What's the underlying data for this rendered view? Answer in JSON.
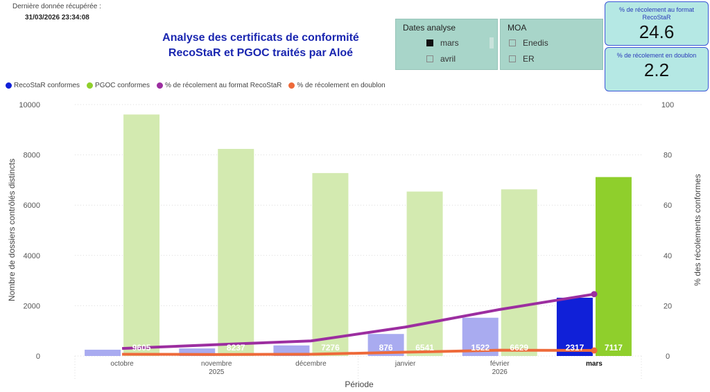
{
  "header": {
    "last_label": "Dernière donnée récupérée :",
    "last_value": "31/03/2026 23:34:08",
    "title_line1": "Analyse des certificats de conformité",
    "title_line2": "RecoStaR et PGOC traités par Aloé"
  },
  "slicers": {
    "dates": {
      "title": "Dates analyse",
      "items": [
        {
          "label": "mars",
          "checked": true
        },
        {
          "label": "avril",
          "checked": false
        }
      ]
    },
    "moa": {
      "title": "MOA",
      "items": [
        {
          "label": "Enedis",
          "checked": false
        },
        {
          "label": "ER",
          "checked": false
        }
      ]
    }
  },
  "kpis": [
    {
      "label": "% de récolement au format RecoStaR",
      "value": "24.6"
    },
    {
      "label": "% de récolement en doublon",
      "value": "2.2"
    }
  ],
  "legend": [
    {
      "label": "RecoStaR conformes",
      "color": "#1020d8"
    },
    {
      "label": "PGOC conformes",
      "color": "#8fcf2c"
    },
    {
      "label": "% de récolement au format RecoStaR",
      "color": "#9c2ea0"
    },
    {
      "label": "% de récolement en doublon",
      "color": "#ee6a3a"
    }
  ],
  "chart_data": {
    "type": "bar",
    "categories": [
      "octobre",
      "novembre",
      "décembre",
      "janvier",
      "février",
      "mars"
    ],
    "year_labels": [
      "2025",
      "2026"
    ],
    "bold_category": "mars",
    "series": [
      {
        "name": "RecoStaR conformes",
        "type": "bar",
        "axis": "left",
        "values": [
          250,
          300,
          420,
          876,
          1522,
          2317
        ],
        "labels": [
          "",
          "",
          "",
          "876",
          "1522",
          "2317"
        ],
        "color": "#1020d8",
        "faded_color": "#a9abf0"
      },
      {
        "name": "PGOC conformes",
        "type": "bar",
        "axis": "left",
        "values": [
          9605,
          8237,
          7276,
          6541,
          6629,
          7117
        ],
        "labels": [
          "9605",
          "8237",
          "7276",
          "6541",
          "6629",
          "7117"
        ],
        "color": "#8fcf2c",
        "faded_color": "#d3eab0"
      },
      {
        "name": "% de récolement au format RecoStaR",
        "type": "line",
        "axis": "right",
        "values": [
          3,
          4.5,
          6,
          11.5,
          18.5,
          24.6
        ],
        "color": "#9c2ea0"
      },
      {
        "name": "% de récolement en doublon",
        "type": "line",
        "axis": "right",
        "values": [
          0.7,
          0.6,
          0.7,
          1.5,
          2.3,
          2.2
        ],
        "color": "#ee6a3a"
      }
    ],
    "xlabel": "Période",
    "ylabel": "Nombre de dossiers contrôlés distincts",
    "y2label": "% des récolements conformes",
    "ylim": [
      0,
      10000
    ],
    "y2lim": [
      0,
      100
    ],
    "yticks": [
      "0",
      "2000",
      "4000",
      "6000",
      "8000",
      "10000"
    ],
    "y2ticks": [
      "0",
      "20",
      "40",
      "60",
      "80",
      "100"
    ],
    "grid": true,
    "legend_position": "top-left"
  }
}
